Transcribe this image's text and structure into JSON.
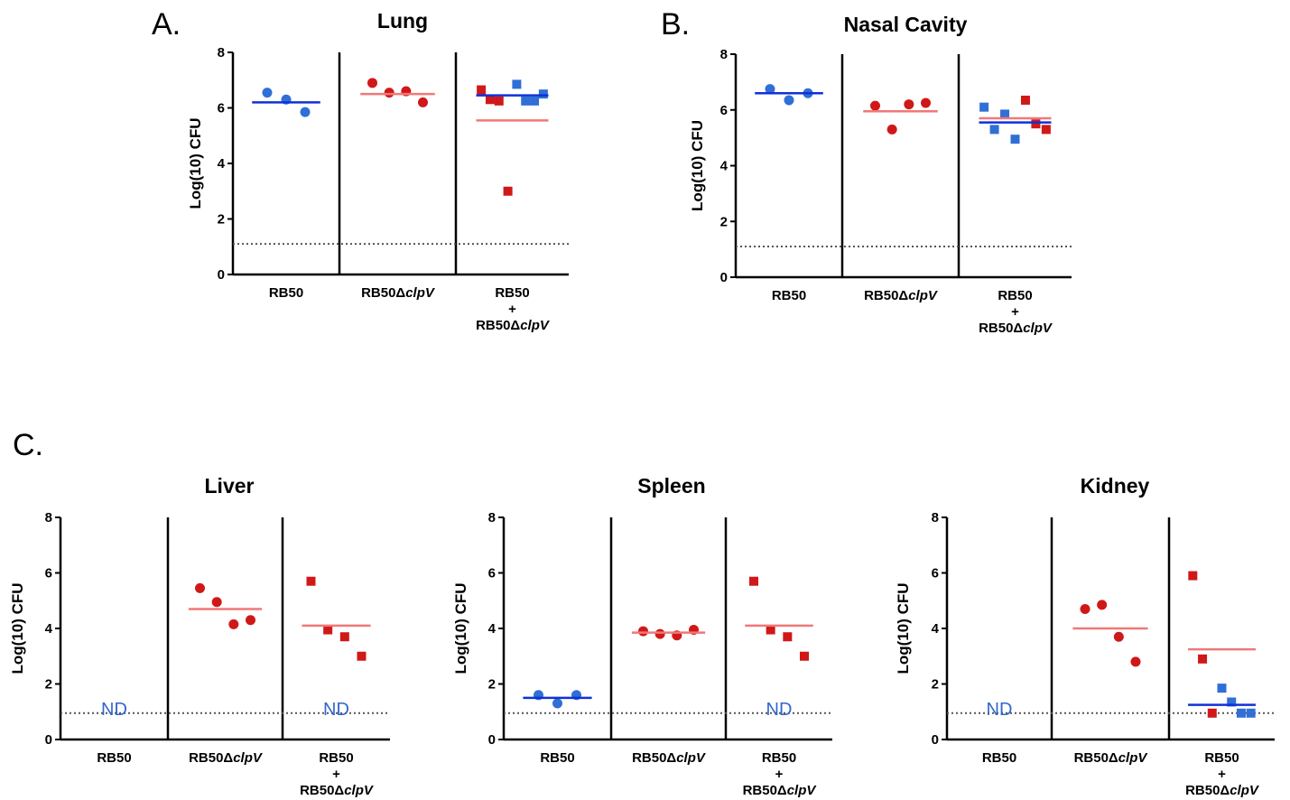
{
  "panel_letters": [
    "A.",
    "B.",
    "C."
  ],
  "colors": {
    "RB50_point": "#2f6fd6",
    "RB50_median": "#1030d8",
    "mutant_point": "#d01818",
    "mutant_median": "#f07878",
    "nd_text": "#3366cc",
    "axis": "#000000",
    "detection_limit": "#555555"
  },
  "chart_data": [
    {
      "type": "scatter",
      "title": "Lung",
      "ylabel": "Log(10) CFU",
      "ylim": [
        0,
        8
      ],
      "yticks": [
        "0",
        "2",
        "4",
        "6",
        "8"
      ],
      "detection_limit": 1.1,
      "categories": [
        {
          "label": "RB50",
          "italic": ""
        },
        {
          "label": "RB50Δ",
          "italic": "clpV"
        },
        {
          "label": "RB50\n+\nRB50Δ",
          "italic": "clpV"
        }
      ],
      "groups": [
        {
          "points": [
            {
              "y": 6.55,
              "color": "blue",
              "shape": "circle"
            },
            {
              "y": 6.3,
              "color": "blue",
              "shape": "circle"
            },
            {
              "y": 5.85,
              "color": "blue",
              "shape": "circle"
            }
          ],
          "medians": [
            {
              "y": 6.2,
              "color": "blue"
            }
          ],
          "nd": ""
        },
        {
          "points": [
            {
              "y": 6.9,
              "color": "red",
              "shape": "circle"
            },
            {
              "y": 6.55,
              "color": "red",
              "shape": "circle"
            },
            {
              "y": 6.6,
              "color": "red",
              "shape": "circle"
            },
            {
              "y": 6.2,
              "color": "red",
              "shape": "circle"
            }
          ],
          "medians": [
            {
              "y": 6.5,
              "color": "red"
            }
          ],
          "nd": ""
        },
        {
          "points": [
            {
              "y": 6.65,
              "color": "red",
              "shape": "square"
            },
            {
              "y": 6.3,
              "color": "red",
              "shape": "square"
            },
            {
              "y": 6.25,
              "color": "red",
              "shape": "square"
            },
            {
              "y": 3.0,
              "color": "red",
              "shape": "square"
            },
            {
              "y": 6.85,
              "color": "blue",
              "shape": "square"
            },
            {
              "y": 6.25,
              "color": "blue",
              "shape": "square"
            },
            {
              "y": 6.25,
              "color": "blue",
              "shape": "square"
            },
            {
              "y": 6.5,
              "color": "blue",
              "shape": "square"
            }
          ],
          "medians": [
            {
              "y": 6.45,
              "color": "blue"
            },
            {
              "y": 5.55,
              "color": "red"
            }
          ],
          "nd": ""
        }
      ]
    },
    {
      "type": "scatter",
      "title": "Nasal Cavity",
      "ylabel": "Log(10) CFU",
      "ylim": [
        0,
        8
      ],
      "yticks": [
        "0",
        "2",
        "4",
        "6",
        "8"
      ],
      "detection_limit": 1.1,
      "categories": [
        {
          "label": "RB50",
          "italic": ""
        },
        {
          "label": "RB50Δ",
          "italic": "clpV"
        },
        {
          "label": "RB50\n+\nRB50Δ",
          "italic": "clpV"
        }
      ],
      "groups": [
        {
          "points": [
            {
              "y": 6.75,
              "color": "blue",
              "shape": "circle"
            },
            {
              "y": 6.35,
              "color": "blue",
              "shape": "circle"
            },
            {
              "y": 6.6,
              "color": "blue",
              "shape": "circle"
            }
          ],
          "medians": [
            {
              "y": 6.6,
              "color": "blue"
            }
          ],
          "nd": ""
        },
        {
          "points": [
            {
              "y": 6.15,
              "color": "red",
              "shape": "circle"
            },
            {
              "y": 5.3,
              "color": "red",
              "shape": "circle"
            },
            {
              "y": 6.2,
              "color": "red",
              "shape": "circle"
            },
            {
              "y": 6.25,
              "color": "red",
              "shape": "circle"
            }
          ],
          "medians": [
            {
              "y": 5.95,
              "color": "red"
            }
          ],
          "nd": ""
        },
        {
          "points": [
            {
              "y": 6.1,
              "color": "blue",
              "shape": "square"
            },
            {
              "y": 5.3,
              "color": "blue",
              "shape": "square"
            },
            {
              "y": 5.85,
              "color": "blue",
              "shape": "square"
            },
            {
              "y": 4.95,
              "color": "blue",
              "shape": "square"
            },
            {
              "y": 6.35,
              "color": "red",
              "shape": "square"
            },
            {
              "y": 5.5,
              "color": "red",
              "shape": "square"
            },
            {
              "y": 5.3,
              "color": "red",
              "shape": "square"
            }
          ],
          "medians": [
            {
              "y": 5.7,
              "color": "red"
            },
            {
              "y": 5.55,
              "color": "blue"
            }
          ],
          "nd": ""
        }
      ]
    },
    {
      "type": "scatter",
      "title": "Liver",
      "ylabel": "Log(10) CFU",
      "ylim": [
        0,
        8
      ],
      "yticks": [
        "0",
        "2",
        "4",
        "6",
        "8"
      ],
      "detection_limit": 0.95,
      "categories": [
        {
          "label": "RB50",
          "italic": ""
        },
        {
          "label": "RB50Δ",
          "italic": "clpV"
        },
        {
          "label": "RB50\n+\nRB50Δ",
          "italic": "clpV"
        }
      ],
      "groups": [
        {
          "points": [],
          "medians": [],
          "nd": "ND"
        },
        {
          "points": [
            {
              "y": 5.45,
              "color": "red",
              "shape": "circle"
            },
            {
              "y": 4.95,
              "color": "red",
              "shape": "circle"
            },
            {
              "y": 4.15,
              "color": "red",
              "shape": "circle"
            },
            {
              "y": 4.3,
              "color": "red",
              "shape": "circle"
            }
          ],
          "medians": [
            {
              "y": 4.7,
              "color": "red"
            }
          ],
          "nd": ""
        },
        {
          "points": [
            {
              "y": 5.7,
              "color": "red",
              "shape": "square"
            },
            {
              "y": 3.95,
              "color": "red",
              "shape": "square"
            },
            {
              "y": 3.7,
              "color": "red",
              "shape": "square"
            },
            {
              "y": 3.0,
              "color": "red",
              "shape": "square"
            }
          ],
          "medians": [
            {
              "y": 4.1,
              "color": "red"
            }
          ],
          "nd": "ND"
        }
      ]
    },
    {
      "type": "scatter",
      "title": "Spleen",
      "ylabel": "Log(10) CFU",
      "ylim": [
        0,
        8
      ],
      "yticks": [
        "0",
        "2",
        "4",
        "6",
        "8"
      ],
      "detection_limit": 0.95,
      "categories": [
        {
          "label": "RB50",
          "italic": ""
        },
        {
          "label": "RB50Δ",
          "italic": "clpV"
        },
        {
          "label": "RB50\n+\nRB50Δ",
          "italic": "clpV"
        }
      ],
      "groups": [
        {
          "points": [
            {
              "y": 1.6,
              "color": "blue",
              "shape": "circle"
            },
            {
              "y": 1.3,
              "color": "blue",
              "shape": "circle"
            },
            {
              "y": 1.6,
              "color": "blue",
              "shape": "circle"
            }
          ],
          "medians": [
            {
              "y": 1.5,
              "color": "blue"
            }
          ],
          "nd": ""
        },
        {
          "points": [
            {
              "y": 3.9,
              "color": "red",
              "shape": "circle"
            },
            {
              "y": 3.8,
              "color": "red",
              "shape": "circle"
            },
            {
              "y": 3.75,
              "color": "red",
              "shape": "circle"
            },
            {
              "y": 3.95,
              "color": "red",
              "shape": "circle"
            }
          ],
          "medians": [
            {
              "y": 3.85,
              "color": "red"
            }
          ],
          "nd": ""
        },
        {
          "points": [
            {
              "y": 5.7,
              "color": "red",
              "shape": "square"
            },
            {
              "y": 3.95,
              "color": "red",
              "shape": "square"
            },
            {
              "y": 3.7,
              "color": "red",
              "shape": "square"
            },
            {
              "y": 3.0,
              "color": "red",
              "shape": "square"
            }
          ],
          "medians": [
            {
              "y": 4.1,
              "color": "red"
            }
          ],
          "nd": "ND"
        }
      ]
    },
    {
      "type": "scatter",
      "title": "Kidney",
      "ylabel": "Log(10) CFU",
      "ylim": [
        0,
        8
      ],
      "yticks": [
        "0",
        "2",
        "4",
        "6",
        "8"
      ],
      "detection_limit": 0.95,
      "categories": [
        {
          "label": "RB50",
          "italic": ""
        },
        {
          "label": "RB50Δ",
          "italic": "clpV"
        },
        {
          "label": "RB50\n+\nRB50Δ",
          "italic": "clpV"
        }
      ],
      "groups": [
        {
          "points": [],
          "medians": [],
          "nd": "ND"
        },
        {
          "points": [
            {
              "y": 4.7,
              "color": "red",
              "shape": "circle"
            },
            {
              "y": 4.85,
              "color": "red",
              "shape": "circle"
            },
            {
              "y": 3.7,
              "color": "red",
              "shape": "circle"
            },
            {
              "y": 2.8,
              "color": "red",
              "shape": "circle"
            }
          ],
          "medians": [
            {
              "y": 4.0,
              "color": "red"
            }
          ],
          "nd": ""
        },
        {
          "points": [
            {
              "y": 5.9,
              "color": "red",
              "shape": "square"
            },
            {
              "y": 2.9,
              "color": "red",
              "shape": "square"
            },
            {
              "y": 0.95,
              "color": "red",
              "shape": "square"
            },
            {
              "y": 1.85,
              "color": "blue",
              "shape": "square"
            },
            {
              "y": 1.35,
              "color": "blue",
              "shape": "square"
            },
            {
              "y": 0.95,
              "color": "blue",
              "shape": "square"
            },
            {
              "y": 0.95,
              "color": "blue",
              "shape": "square"
            }
          ],
          "medians": [
            {
              "y": 3.25,
              "color": "red"
            },
            {
              "y": 1.25,
              "color": "blue"
            }
          ],
          "nd": ""
        }
      ]
    }
  ]
}
